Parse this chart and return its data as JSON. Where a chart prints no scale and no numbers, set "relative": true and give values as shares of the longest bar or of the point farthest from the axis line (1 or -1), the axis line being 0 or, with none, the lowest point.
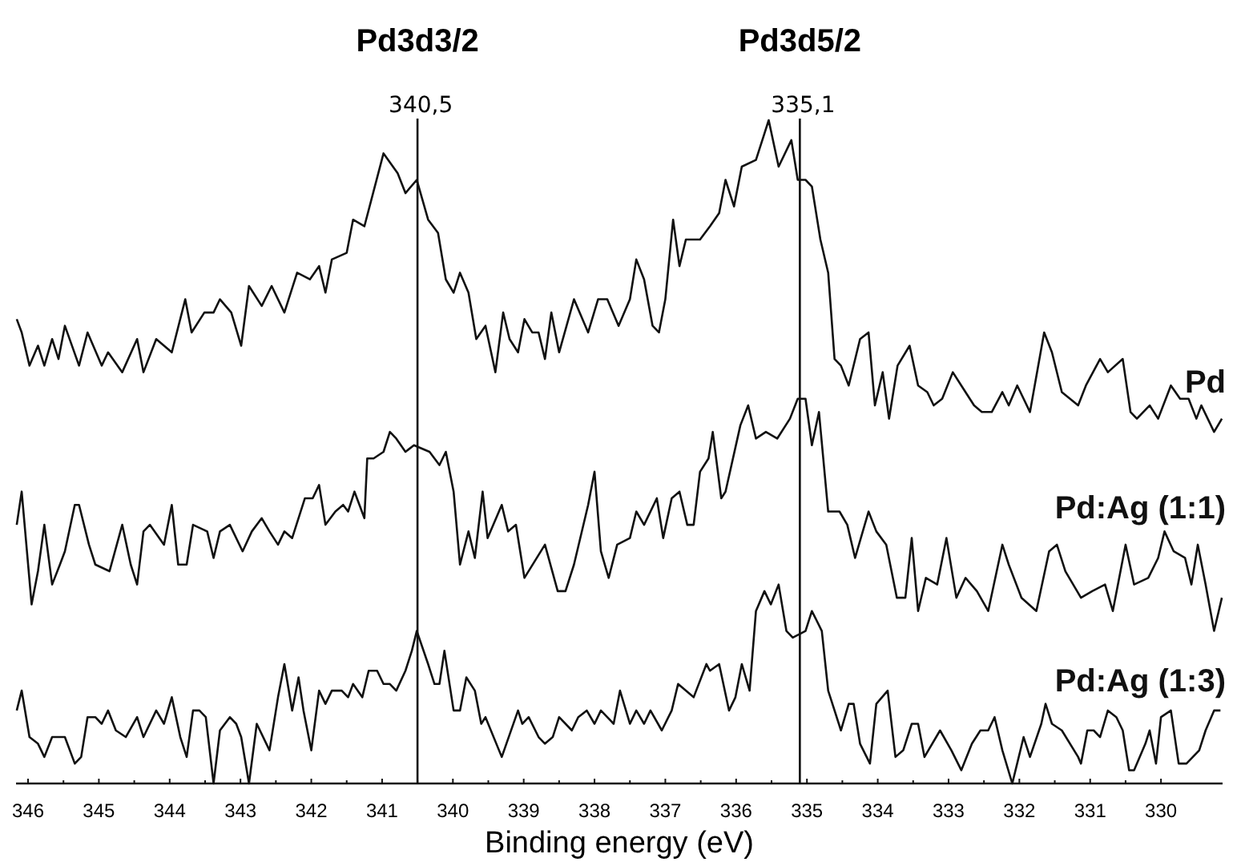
{
  "chart_data": {
    "type": "line",
    "relative": true,
    "xlabel": "Binding energy (eV)",
    "xlim": [
      346.17,
      329.13
    ],
    "xticks": [
      346,
      345,
      344,
      343,
      342,
      341,
      340,
      339,
      338,
      337,
      336,
      335,
      334,
      333,
      332,
      331,
      330
    ],
    "grid": false,
    "marker": "none",
    "line_style": "solid",
    "ref_lines": [
      {
        "axis": "x",
        "value": 340.5,
        "label": "340,5"
      },
      {
        "axis": "x",
        "value": 335.1,
        "label": "335,1"
      }
    ],
    "annotations": [
      "Pd3d3/2",
      "Pd3d5/2"
    ],
    "series": [
      {
        "name": "Pd",
        "color": "#111111",
        "x": [
          346.16,
          346.09,
          345.98,
          345.86,
          345.77,
          345.66,
          345.57,
          345.48,
          345.28,
          345.16,
          344.96,
          344.87,
          344.67,
          344.46,
          344.37,
          344.19,
          343.97,
          343.78,
          343.69,
          343.51,
          343.38,
          343.29,
          343.13,
          342.99,
          342.88,
          342.7,
          342.56,
          342.38,
          342.2,
          342.02,
          341.89,
          341.8,
          341.71,
          341.5,
          341.41,
          341.25,
          340.98,
          340.78,
          340.67,
          340.51,
          340.35,
          340.21,
          340.1,
          339.99,
          339.9,
          339.78,
          339.67,
          339.54,
          339.4,
          339.29,
          339.2,
          339.08,
          338.99,
          338.88,
          338.79,
          338.7,
          338.61,
          338.5,
          338.29,
          338.09,
          337.95,
          337.82,
          337.66,
          337.5,
          337.41,
          337.3,
          337.18,
          337.09,
          337.0,
          336.89,
          336.8,
          336.71,
          336.51,
          336.37,
          336.24,
          336.15,
          336.03,
          335.92,
          335.72,
          335.6,
          335.54,
          335.4,
          335.22,
          335.13,
          335.02,
          334.93,
          334.81,
          334.7,
          334.61,
          334.52,
          334.41,
          334.25,
          334.13,
          334.04,
          333.93,
          333.84,
          333.72,
          333.55,
          333.43,
          333.3,
          333.21,
          333.09,
          332.94,
          332.82,
          332.64,
          332.53,
          332.39,
          332.24,
          332.15,
          332.03,
          331.85,
          331.65,
          331.54,
          331.4,
          331.17,
          331.06,
          330.86,
          330.75,
          330.54,
          330.43,
          330.34,
          330.16,
          330.04,
          329.86,
          329.73,
          329.61,
          329.5,
          329.43,
          329.25,
          329.14
        ],
        "values": [
          0.7,
          0.68,
          0.63,
          0.66,
          0.63,
          0.67,
          0.64,
          0.69,
          0.63,
          0.68,
          0.63,
          0.65,
          0.62,
          0.67,
          0.62,
          0.67,
          0.65,
          0.73,
          0.68,
          0.71,
          0.71,
          0.73,
          0.71,
          0.66,
          0.75,
          0.72,
          0.75,
          0.71,
          0.77,
          0.76,
          0.78,
          0.74,
          0.79,
          0.8,
          0.85,
          0.84,
          0.95,
          0.92,
          0.89,
          0.91,
          0.85,
          0.83,
          0.76,
          0.74,
          0.77,
          0.74,
          0.67,
          0.69,
          0.62,
          0.71,
          0.67,
          0.65,
          0.7,
          0.68,
          0.68,
          0.64,
          0.71,
          0.65,
          0.73,
          0.68,
          0.73,
          0.73,
          0.69,
          0.73,
          0.79,
          0.76,
          0.69,
          0.68,
          0.73,
          0.85,
          0.78,
          0.82,
          0.82,
          0.84,
          0.86,
          0.91,
          0.87,
          0.93,
          0.94,
          0.98,
          1,
          0.93,
          0.97,
          0.91,
          0.91,
          0.9,
          0.82,
          0.77,
          0.64,
          0.63,
          0.6,
          0.67,
          0.68,
          0.57,
          0.62,
          0.55,
          0.63,
          0.66,
          0.6,
          0.59,
          0.57,
          0.58,
          0.62,
          0.6,
          0.57,
          0.56,
          0.56,
          0.59,
          0.57,
          0.6,
          0.56,
          0.68,
          0.65,
          0.59,
          0.57,
          0.6,
          0.64,
          0.62,
          0.64,
          0.56,
          0.55,
          0.57,
          0.55,
          0.6,
          0.58,
          0.58,
          0.55,
          0.57,
          0.53,
          0.55
        ]
      },
      {
        "name": "Pd:Ag (1:1)",
        "color": "#111111",
        "x": [
          346.16,
          346.09,
          345.95,
          345.86,
          345.77,
          345.66,
          345.55,
          345.48,
          345.34,
          345.28,
          345.14,
          345.05,
          344.85,
          344.67,
          344.55,
          344.46,
          344.37,
          344.28,
          344.08,
          343.97,
          343.88,
          343.76,
          343.67,
          343.47,
          343.38,
          343.29,
          343.15,
          342.97,
          342.84,
          342.7,
          342.59,
          342.47,
          342.38,
          342.27,
          342.09,
          341.98,
          341.89,
          341.8,
          341.66,
          341.55,
          341.48,
          341.39,
          341.25,
          341.21,
          341.12,
          340.98,
          340.89,
          340.8,
          340.67,
          340.55,
          340.33,
          340.19,
          340.1,
          339.99,
          339.9,
          339.78,
          339.69,
          339.58,
          339.51,
          339.31,
          339.22,
          339.11,
          338.99,
          338.7,
          338.52,
          338.41,
          338.29,
          338.09,
          338.0,
          337.91,
          337.8,
          337.68,
          337.5,
          337.41,
          337.3,
          337.12,
          337.03,
          336.91,
          336.8,
          336.69,
          336.6,
          336.51,
          336.39,
          336.33,
          336.21,
          336.15,
          335.94,
          335.83,
          335.72,
          335.58,
          335.42,
          335.24,
          335.13,
          335.02,
          334.93,
          334.83,
          334.7,
          334.54,
          334.43,
          334.32,
          334.13,
          334.02,
          333.88,
          333.73,
          333.61,
          333.52,
          333.43,
          333.32,
          333.16,
          333.03,
          332.89,
          332.76,
          332.6,
          332.44,
          332.24,
          332.15,
          331.97,
          331.76,
          331.58,
          331.47,
          331.35,
          331.13,
          330.97,
          330.79,
          330.68,
          330.5,
          330.38,
          330.18,
          330.04,
          329.95,
          329.82,
          329.66,
          329.57,
          329.48,
          329.37,
          329.25,
          329.14
        ],
        "values": [
          0.39,
          0.44,
          0.27,
          0.32,
          0.39,
          0.3,
          0.33,
          0.35,
          0.42,
          0.42,
          0.36,
          0.33,
          0.32,
          0.39,
          0.33,
          0.3,
          0.38,
          0.39,
          0.36,
          0.42,
          0.33,
          0.33,
          0.39,
          0.38,
          0.34,
          0.38,
          0.39,
          0.35,
          0.38,
          0.4,
          0.38,
          0.36,
          0.38,
          0.37,
          0.43,
          0.43,
          0.45,
          0.39,
          0.41,
          0.42,
          0.41,
          0.44,
          0.4,
          0.49,
          0.49,
          0.5,
          0.53,
          0.52,
          0.5,
          0.51,
          0.5,
          0.48,
          0.5,
          0.44,
          0.33,
          0.38,
          0.34,
          0.44,
          0.37,
          0.42,
          0.38,
          0.39,
          0.31,
          0.36,
          0.29,
          0.29,
          0.33,
          0.42,
          0.47,
          0.35,
          0.31,
          0.36,
          0.37,
          0.41,
          0.39,
          0.43,
          0.37,
          0.43,
          0.44,
          0.39,
          0.39,
          0.47,
          0.49,
          0.53,
          0.43,
          0.44,
          0.54,
          0.57,
          0.52,
          0.53,
          0.52,
          0.55,
          0.58,
          0.58,
          0.51,
          0.56,
          0.41,
          0.41,
          0.39,
          0.34,
          0.41,
          0.38,
          0.36,
          0.28,
          0.28,
          0.37,
          0.26,
          0.31,
          0.3,
          0.37,
          0.28,
          0.31,
          0.29,
          0.26,
          0.36,
          0.33,
          0.28,
          0.26,
          0.35,
          0.36,
          0.32,
          0.28,
          0.29,
          0.3,
          0.26,
          0.36,
          0.3,
          0.31,
          0.34,
          0.38,
          0.35,
          0.34,
          0.3,
          0.36,
          0.3,
          0.23,
          0.28
        ]
      },
      {
        "name": "Pd:Ag (1:3)",
        "color": "#111111",
        "x": [
          346.16,
          346.09,
          345.98,
          345.86,
          345.77,
          345.66,
          345.55,
          345.48,
          345.34,
          345.25,
          345.16,
          345.05,
          344.96,
          344.87,
          344.76,
          344.62,
          344.46,
          344.37,
          344.19,
          344.08,
          343.97,
          343.85,
          343.76,
          343.67,
          343.58,
          343.49,
          343.38,
          343.29,
          343.15,
          343.06,
          342.99,
          342.88,
          342.77,
          342.59,
          342.47,
          342.38,
          342.27,
          342.18,
          342.11,
          342.0,
          341.89,
          341.8,
          341.71,
          341.57,
          341.48,
          341.41,
          341.28,
          341.19,
          341.07,
          340.98,
          340.89,
          340.8,
          340.67,
          340.58,
          340.51,
          340.35,
          340.26,
          340.19,
          340.12,
          339.99,
          339.9,
          339.81,
          339.69,
          339.6,
          339.54,
          339.31,
          339.08,
          339.02,
          338.93,
          338.79,
          338.7,
          338.59,
          338.5,
          338.32,
          338.23,
          338.11,
          338.0,
          337.91,
          337.73,
          337.64,
          337.5,
          337.41,
          337.3,
          337.21,
          337.05,
          336.91,
          336.82,
          336.6,
          336.42,
          336.37,
          336.24,
          336.1,
          336.01,
          335.92,
          335.81,
          335.72,
          335.6,
          335.51,
          335.4,
          335.29,
          335.2,
          335.02,
          334.93,
          334.79,
          334.7,
          334.61,
          334.52,
          334.41,
          334.34,
          334.25,
          334.11,
          334.02,
          333.86,
          333.75,
          333.64,
          333.52,
          333.43,
          333.34,
          333.12,
          332.96,
          332.82,
          332.67,
          332.55,
          332.44,
          332.35,
          332.24,
          332.1,
          331.94,
          331.85,
          331.69,
          331.63,
          331.54,
          331.4,
          331.17,
          331.13,
          331.04,
          330.95,
          330.86,
          330.75,
          330.63,
          330.54,
          330.45,
          330.38,
          330.22,
          330.16,
          330.07,
          330.0,
          329.86,
          329.75,
          329.64,
          329.55,
          329.46,
          329.37,
          329.25,
          329.16
        ],
        "values": [
          0.11,
          0.14,
          0.07,
          0.06,
          0.04,
          0.07,
          0.07,
          0.07,
          0.03,
          0.04,
          0.1,
          0.1,
          0.09,
          0.11,
          0.08,
          0.07,
          0.1,
          0.07,
          0.11,
          0.09,
          0.13,
          0.07,
          0.04,
          0.11,
          0.11,
          0.1,
          0,
          0.08,
          0.1,
          0.09,
          0.07,
          0,
          0.09,
          0.05,
          0.13,
          0.18,
          0.11,
          0.16,
          0.11,
          0.05,
          0.14,
          0.12,
          0.14,
          0.14,
          0.13,
          0.15,
          0.13,
          0.17,
          0.17,
          0.15,
          0.15,
          0.14,
          0.17,
          0.2,
          0.23,
          0.18,
          0.15,
          0.15,
          0.2,
          0.11,
          0.11,
          0.16,
          0.14,
          0.09,
          0.1,
          0.04,
          0.11,
          0.09,
          0.1,
          0.07,
          0.06,
          0.07,
          0.1,
          0.08,
          0.1,
          0.11,
          0.09,
          0.11,
          0.09,
          0.14,
          0.09,
          0.11,
          0.09,
          0.11,
          0.08,
          0.11,
          0.15,
          0.13,
          0.18,
          0.17,
          0.18,
          0.11,
          0.13,
          0.18,
          0.14,
          0.26,
          0.29,
          0.27,
          0.3,
          0.23,
          0.22,
          0.23,
          0.26,
          0.23,
          0.14,
          0.11,
          0.08,
          0.12,
          0.12,
          0.06,
          0.03,
          0.12,
          0.14,
          0.04,
          0.05,
          0.09,
          0.09,
          0.04,
          0.08,
          0.05,
          0.02,
          0.06,
          0.08,
          0.08,
          0.1,
          0.05,
          0,
          0.07,
          0.04,
          0.09,
          0.12,
          0.09,
          0.08,
          0.04,
          0.03,
          0.08,
          0.08,
          0.07,
          0.11,
          0.1,
          0.08,
          0.02,
          0.02,
          0.06,
          0.08,
          0.03,
          0.1,
          0.11,
          0.03,
          0.03,
          0.04,
          0.05,
          0.08,
          0.11,
          0.11
        ]
      }
    ]
  }
}
